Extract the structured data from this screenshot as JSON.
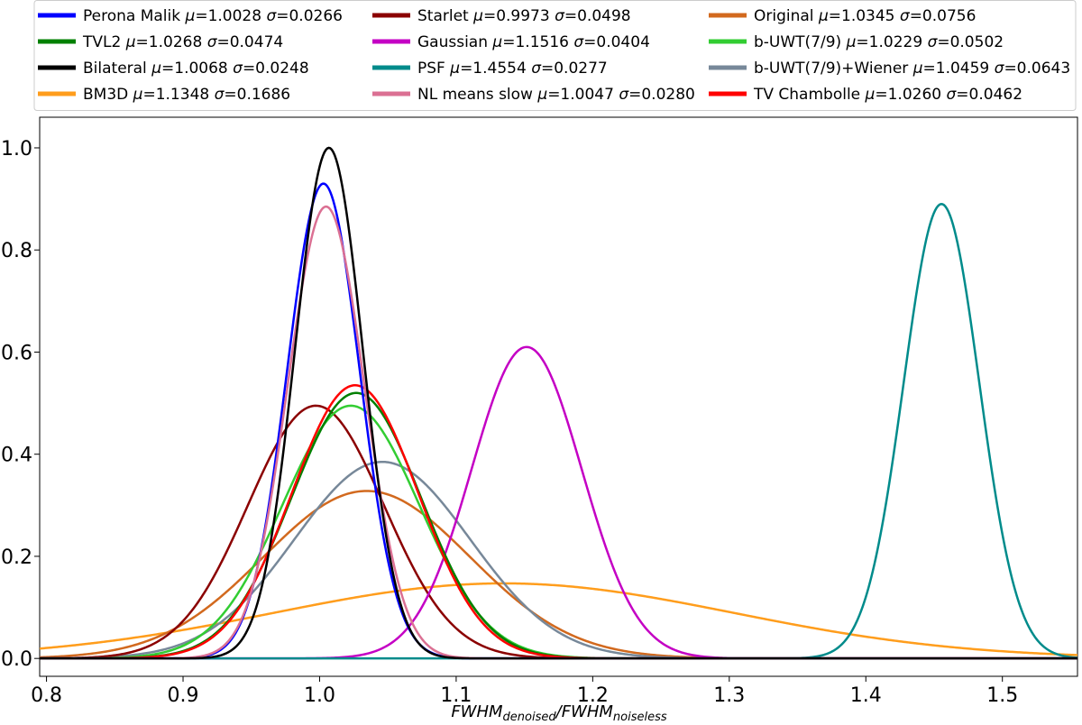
{
  "chart_data": {
    "type": "line",
    "title": "",
    "xlabel": {
      "main1": "FWHM",
      "sub1": "denoised",
      "sep": "/",
      "main2": "FWHM",
      "sub2": "noiseless"
    },
    "ylabel": "",
    "xlim": [
      0.795,
      1.555
    ],
    "ylim": [
      -0.035,
      1.06
    ],
    "xticks": [
      0.8,
      0.9,
      1.0,
      1.1,
      1.2,
      1.3,
      1.4,
      1.5
    ],
    "xtick_labels": [
      "0.8",
      "0.9",
      "1.0",
      "1.1",
      "1.2",
      "1.3",
      "1.4",
      "1.5"
    ],
    "yticks": [
      0.0,
      0.2,
      0.4,
      0.6,
      0.8,
      1.0
    ],
    "ytick_labels": [
      "0.0",
      "0.2",
      "0.4",
      "0.6",
      "0.8",
      "1.0"
    ],
    "legend_position": "top",
    "series": [
      {
        "name": "Perona Malik",
        "label_prefix": "Perona Malik",
        "mu": 1.0028,
        "sigma": 0.0266,
        "mu_text": "1.0028",
        "sigma_text": "0.0266",
        "peak": 0.93,
        "color": "#0000ff"
      },
      {
        "name": "TVL2",
        "label_prefix": "TVL2",
        "mu": 1.0268,
        "sigma": 0.0474,
        "mu_text": "1.0268",
        "sigma_text": "0.0474",
        "peak": 0.52,
        "color": "#008000"
      },
      {
        "name": "Bilateral",
        "label_prefix": "Bilateral",
        "mu": 1.0068,
        "sigma": 0.0248,
        "mu_text": "1.0068",
        "sigma_text": "0.0248",
        "peak": 1.0,
        "color": "#000000"
      },
      {
        "name": "BM3D",
        "label_prefix": "BM3D",
        "mu": 1.1348,
        "sigma": 0.1686,
        "mu_text": "1.1348",
        "sigma_text": "0.1686",
        "peak": 0.147,
        "color": "#ff9d1c"
      },
      {
        "name": "Starlet",
        "label_prefix": "Starlet",
        "mu": 0.9973,
        "sigma": 0.0498,
        "mu_text": "0.9973",
        "sigma_text": "0.0498",
        "peak": 0.495,
        "color": "#8b0000"
      },
      {
        "name": "Gaussian",
        "label_prefix": "Gaussian",
        "mu": 1.1516,
        "sigma": 0.0404,
        "mu_text": "1.1516",
        "sigma_text": "0.0404",
        "peak": 0.61,
        "color": "#c400c4"
      },
      {
        "name": "PSF",
        "label_prefix": "PSF",
        "mu": 1.4554,
        "sigma": 0.0277,
        "mu_text": "1.4554",
        "sigma_text": "0.0277",
        "peak": 0.89,
        "color": "#008b8b"
      },
      {
        "name": "NL means slow",
        "label_prefix": "NL means slow",
        "mu": 1.0047,
        "sigma": 0.028,
        "mu_text": "1.0047",
        "sigma_text": "0.0280",
        "peak": 0.885,
        "color": "#db7093"
      },
      {
        "name": "Original",
        "label_prefix": "Original",
        "mu": 1.0345,
        "sigma": 0.0756,
        "mu_text": "1.0345",
        "sigma_text": "0.0756",
        "peak": 0.328,
        "color": "#d2691e"
      },
      {
        "name": "b-UWT(7/9)",
        "label_prefix": "b-UWT(7/9)",
        "mu": 1.0229,
        "sigma": 0.0502,
        "mu_text": "1.0229",
        "sigma_text": "0.0502",
        "peak": 0.495,
        "color": "#32cd32"
      },
      {
        "name": "b-UWT(7/9)+Wiener",
        "label_prefix": "b-UWT(7/9)+Wiener",
        "mu": 1.0459,
        "sigma": 0.0643,
        "mu_text": "1.0459",
        "sigma_text": "0.0643",
        "peak": 0.385,
        "color": "#778899"
      },
      {
        "name": "TV Chambolle",
        "label_prefix": "TV Chambolle",
        "mu": 1.026,
        "sigma": 0.0462,
        "mu_text": "1.0260",
        "sigma_text": "0.0462",
        "peak": 0.535,
        "color": "#ff0000"
      }
    ]
  }
}
